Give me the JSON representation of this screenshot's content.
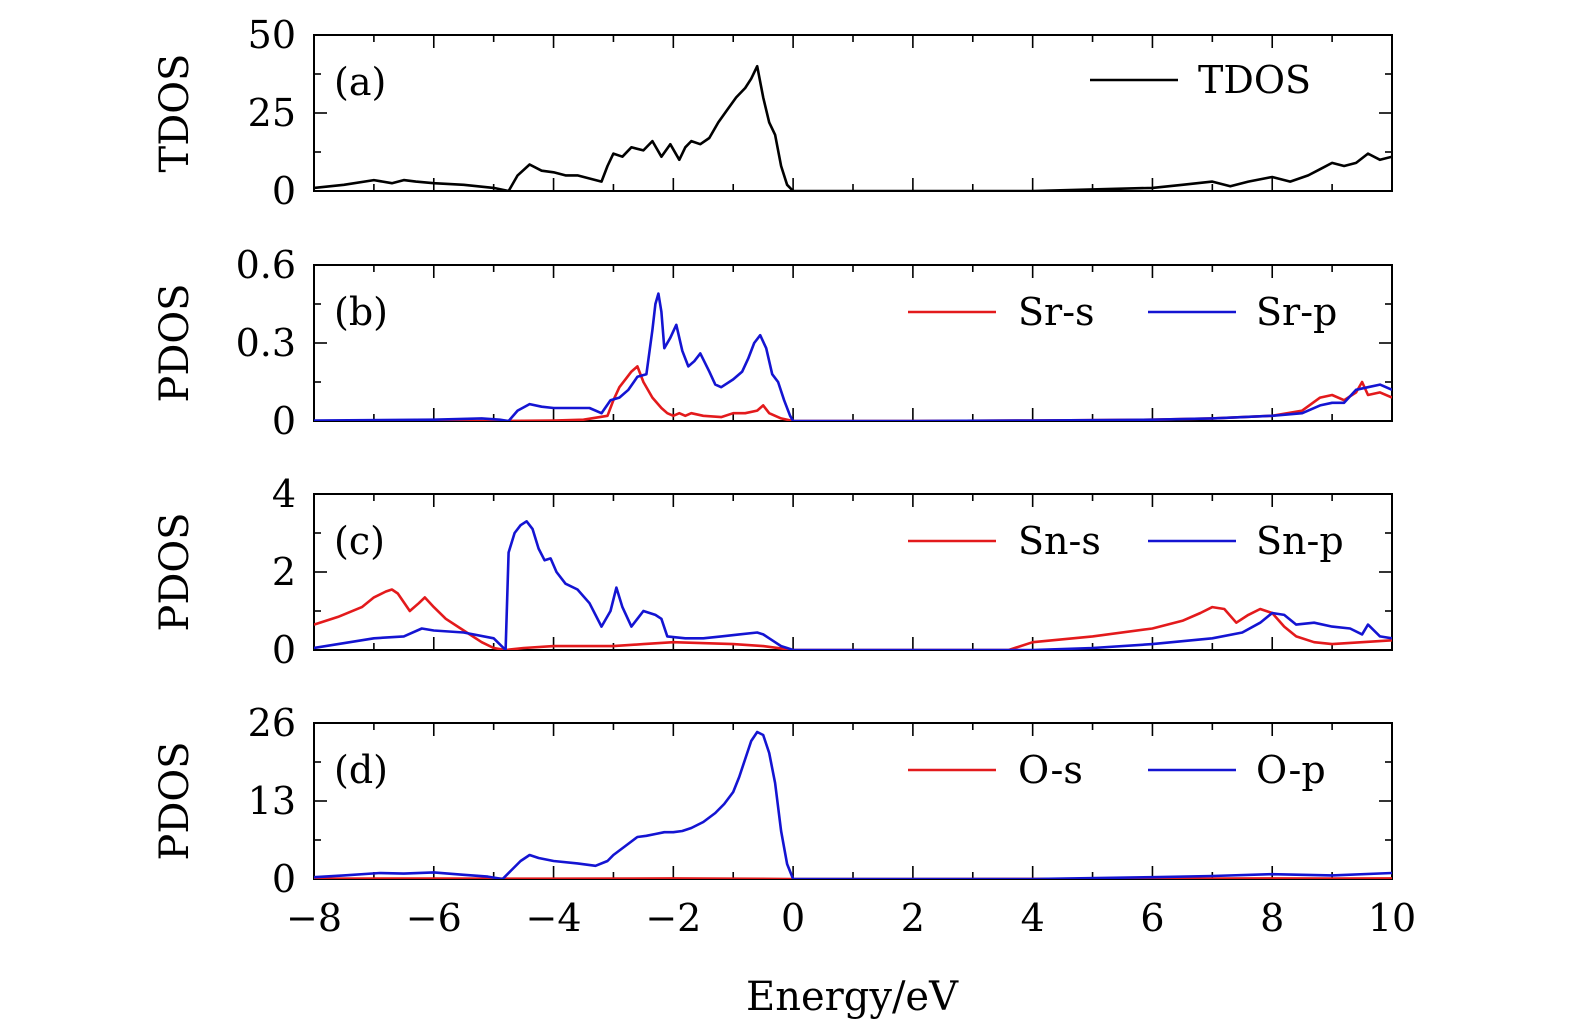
{
  "chart_data": [
    {
      "type": "line",
      "panel_label": "(a)",
      "ylabel": "TDOS",
      "xlim": [
        -8,
        10
      ],
      "ylim": [
        0,
        50
      ],
      "yticks": [
        "0",
        "25",
        "50"
      ],
      "legend_position": "top-right",
      "series": [
        {
          "name": "TDOS",
          "color": "#000000",
          "x": [
            -8,
            -7.5,
            -7,
            -6.7,
            -6.5,
            -6.3,
            -6,
            -5.5,
            -5,
            -4.75,
            -4.6,
            -4.4,
            -4.2,
            -4,
            -3.8,
            -3.6,
            -3.4,
            -3.2,
            -3.1,
            -3.0,
            -2.85,
            -2.7,
            -2.5,
            -2.35,
            -2.2,
            -2.05,
            -1.9,
            -1.8,
            -1.7,
            -1.55,
            -1.4,
            -1.25,
            -1.1,
            -0.95,
            -0.8,
            -0.7,
            -0.6,
            -0.5,
            -0.4,
            -0.3,
            -0.2,
            -0.1,
            0,
            2,
            4,
            5,
            6,
            6.5,
            7,
            7.3,
            7.6,
            8,
            8.3,
            8.6,
            8.8,
            9.0,
            9.2,
            9.4,
            9.6,
            9.8,
            10
          ],
          "values": [
            1,
            2,
            3.5,
            2.5,
            3.5,
            3,
            2.5,
            2,
            1,
            0,
            5,
            8.5,
            6.5,
            6,
            5,
            5,
            4,
            3,
            8,
            12,
            11,
            14,
            13,
            16,
            11,
            15,
            10,
            14,
            16,
            15,
            17,
            22,
            26,
            30,
            33,
            36,
            40,
            30,
            22,
            18,
            8,
            2,
            0,
            0,
            0,
            0.5,
            1,
            2,
            3,
            1.5,
            3,
            4.5,
            3,
            5,
            7,
            9,
            8,
            9,
            12,
            10,
            11
          ]
        }
      ]
    },
    {
      "type": "line",
      "panel_label": "(b)",
      "ylabel": "PDOS",
      "xlim": [
        -8,
        10
      ],
      "ylim": [
        0,
        0.6
      ],
      "yticks": [
        "0",
        "0.3",
        "0.6"
      ],
      "legend_position": "top-right",
      "series": [
        {
          "name": "Sr-s",
          "color": "#e31a1c",
          "x": [
            -8,
            -5,
            -4,
            -3.5,
            -3.1,
            -3.0,
            -2.9,
            -2.8,
            -2.7,
            -2.6,
            -2.5,
            -2.35,
            -2.2,
            -2.1,
            -2.0,
            -1.9,
            -1.8,
            -1.7,
            -1.5,
            -1.2,
            -1.0,
            -0.8,
            -0.6,
            -0.5,
            -0.4,
            -0.3,
            -0.2,
            0,
            2,
            4,
            6,
            7,
            8,
            8.5,
            8.8,
            9.0,
            9.2,
            9.4,
            9.5,
            9.6,
            9.8,
            10
          ],
          "values": [
            0,
            0,
            0.002,
            0.005,
            0.02,
            0.08,
            0.13,
            0.16,
            0.19,
            0.21,
            0.15,
            0.09,
            0.05,
            0.03,
            0.02,
            0.03,
            0.02,
            0.03,
            0.02,
            0.015,
            0.03,
            0.03,
            0.04,
            0.06,
            0.03,
            0.02,
            0.01,
            0,
            0,
            0.002,
            0.005,
            0.01,
            0.02,
            0.04,
            0.09,
            0.1,
            0.08,
            0.11,
            0.15,
            0.1,
            0.11,
            0.09
          ]
        },
        {
          "name": "Sr-p",
          "color": "#1414d2",
          "x": [
            -8,
            -6,
            -5.2,
            -4.9,
            -4.75,
            -4.6,
            -4.4,
            -4.2,
            -4.0,
            -3.7,
            -3.4,
            -3.2,
            -3.05,
            -2.9,
            -2.75,
            -2.6,
            -2.45,
            -2.35,
            -2.3,
            -2.25,
            -2.2,
            -2.15,
            -2.05,
            -1.95,
            -1.85,
            -1.75,
            -1.65,
            -1.55,
            -1.4,
            -1.3,
            -1.2,
            -1.0,
            -0.85,
            -0.75,
            -0.65,
            -0.55,
            -0.45,
            -0.35,
            -0.25,
            -0.15,
            -0.05,
            0,
            2,
            4,
            6,
            7,
            8,
            8.5,
            8.8,
            9.0,
            9.2,
            9.4,
            9.6,
            9.8,
            10
          ],
          "values": [
            0.002,
            0.005,
            0.01,
            0.005,
            0,
            0.04,
            0.065,
            0.055,
            0.05,
            0.05,
            0.05,
            0.03,
            0.08,
            0.09,
            0.12,
            0.17,
            0.18,
            0.35,
            0.45,
            0.49,
            0.42,
            0.28,
            0.32,
            0.37,
            0.27,
            0.21,
            0.23,
            0.26,
            0.19,
            0.14,
            0.13,
            0.16,
            0.19,
            0.24,
            0.3,
            0.33,
            0.28,
            0.18,
            0.15,
            0.08,
            0.02,
            0,
            0,
            0.002,
            0.005,
            0.01,
            0.02,
            0.03,
            0.06,
            0.07,
            0.07,
            0.12,
            0.13,
            0.14,
            0.12
          ]
        }
      ]
    },
    {
      "type": "line",
      "panel_label": "(c)",
      "ylabel": "PDOS",
      "xlim": [
        -8,
        10
      ],
      "ylim": [
        0,
        4
      ],
      "yticks": [
        "0",
        "2",
        "4"
      ],
      "legend_position": "top-right",
      "series": [
        {
          "name": "Sn-s",
          "color": "#e31a1c",
          "x": [
            -8,
            -7.6,
            -7.2,
            -7.0,
            -6.8,
            -6.7,
            -6.6,
            -6.4,
            -6.25,
            -6.15,
            -6.0,
            -5.8,
            -5.5,
            -5.2,
            -5.0,
            -4.8,
            -4.5,
            -4.0,
            -3.5,
            -3.0,
            -2.5,
            -2.0,
            -1.0,
            -0.5,
            0,
            2,
            3.6,
            4,
            5,
            6,
            6.5,
            6.8,
            7.0,
            7.2,
            7.4,
            7.6,
            7.8,
            8.0,
            8.2,
            8.4,
            8.7,
            9.0,
            9.5,
            10
          ],
          "values": [
            0.65,
            0.85,
            1.1,
            1.35,
            1.5,
            1.55,
            1.45,
            1.0,
            1.2,
            1.35,
            1.1,
            0.8,
            0.5,
            0.2,
            0.05,
            0,
            0.05,
            0.1,
            0.1,
            0.1,
            0.15,
            0.2,
            0.15,
            0.1,
            0,
            0,
            0,
            0.2,
            0.35,
            0.55,
            0.75,
            0.95,
            1.1,
            1.05,
            0.7,
            0.9,
            1.05,
            0.95,
            0.6,
            0.35,
            0.2,
            0.15,
            0.2,
            0.25
          ]
        },
        {
          "name": "Sn-p",
          "color": "#1414d2",
          "x": [
            -8,
            -7,
            -6.5,
            -6.2,
            -6.0,
            -5.5,
            -5.0,
            -4.8,
            -4.75,
            -4.65,
            -4.55,
            -4.45,
            -4.35,
            -4.25,
            -4.15,
            -4.05,
            -3.95,
            -3.8,
            -3.6,
            -3.4,
            -3.2,
            -3.05,
            -2.95,
            -2.85,
            -2.7,
            -2.6,
            -2.5,
            -2.3,
            -2.2,
            -2.1,
            -1.8,
            -1.5,
            -1.2,
            -0.9,
            -0.6,
            -0.5,
            -0.4,
            -0.3,
            -0.2,
            -0.1,
            0,
            2,
            4,
            5,
            6,
            7,
            7.5,
            7.8,
            8.0,
            8.2,
            8.4,
            8.7,
            9.0,
            9.3,
            9.5,
            9.6,
            9.8,
            10
          ],
          "values": [
            0.05,
            0.3,
            0.35,
            0.55,
            0.5,
            0.45,
            0.3,
            0,
            2.5,
            3.0,
            3.2,
            3.3,
            3.1,
            2.6,
            2.3,
            2.35,
            2.0,
            1.7,
            1.55,
            1.2,
            0.6,
            1.0,
            1.6,
            1.1,
            0.6,
            0.8,
            1.0,
            0.9,
            0.8,
            0.35,
            0.3,
            0.3,
            0.35,
            0.4,
            0.45,
            0.4,
            0.3,
            0.2,
            0.1,
            0.05,
            0,
            0,
            0,
            0.05,
            0.15,
            0.3,
            0.45,
            0.7,
            0.95,
            0.9,
            0.65,
            0.7,
            0.6,
            0.55,
            0.4,
            0.65,
            0.35,
            0.3
          ]
        }
      ]
    },
    {
      "type": "line",
      "panel_label": "(d)",
      "ylabel": "PDOS",
      "xlim": [
        -8,
        10
      ],
      "ylim": [
        0,
        26
      ],
      "yticks": [
        "0",
        "13",
        "26"
      ],
      "xticks": [
        "−8",
        "−6",
        "−4",
        "−2",
        "0",
        "2",
        "4",
        "6",
        "8",
        "10"
      ],
      "xlabel": "Energy/eV",
      "legend_position": "top-right",
      "series": [
        {
          "name": "O-s",
          "color": "#e31a1c",
          "x": [
            -8,
            -6,
            -4,
            -2,
            0,
            2,
            4,
            6,
            7,
            8,
            9,
            10
          ],
          "values": [
            0.05,
            0.08,
            0.05,
            0.1,
            0,
            0,
            0.02,
            0.05,
            0.08,
            0.1,
            0.08,
            0.1
          ]
        },
        {
          "name": "O-p",
          "color": "#1414d2",
          "x": [
            -8,
            -7.5,
            -6.9,
            -6.5,
            -6.0,
            -5.5,
            -5.1,
            -4.85,
            -4.7,
            -4.55,
            -4.4,
            -4.25,
            -4.0,
            -3.6,
            -3.3,
            -3.1,
            -3.0,
            -2.8,
            -2.6,
            -2.45,
            -2.3,
            -2.15,
            -2.0,
            -1.85,
            -1.7,
            -1.6,
            -1.5,
            -1.3,
            -1.15,
            -1.0,
            -0.9,
            -0.8,
            -0.7,
            -0.6,
            -0.5,
            -0.4,
            -0.3,
            -0.2,
            -0.1,
            0,
            2,
            4,
            6,
            7,
            8,
            9,
            10
          ],
          "values": [
            0.3,
            0.6,
            1.0,
            0.9,
            1.1,
            0.7,
            0.4,
            0,
            1.5,
            3.0,
            4.0,
            3.5,
            3.0,
            2.6,
            2.2,
            3.0,
            4.0,
            5.5,
            7.0,
            7.2,
            7.5,
            7.8,
            7.8,
            8.0,
            8.5,
            9.0,
            9.5,
            11.0,
            12.5,
            14.5,
            17,
            20,
            23,
            24.5,
            24,
            21,
            16,
            8,
            2.5,
            0,
            0,
            0,
            0.3,
            0.5,
            0.8,
            0.6,
            1.0
          ]
        }
      ]
    }
  ]
}
